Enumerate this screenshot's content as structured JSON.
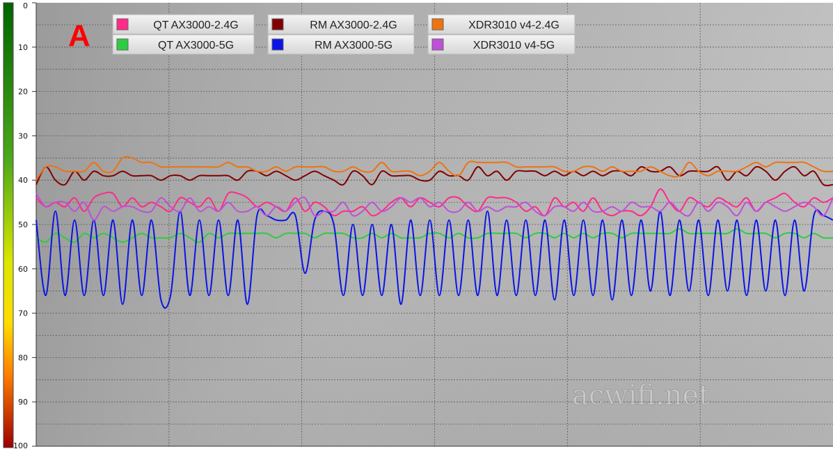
{
  "chart_data": {
    "type": "line",
    "title": "",
    "panel_label": "A",
    "watermark": "acwifi.net",
    "xlabel": "",
    "ylabel": "",
    "ylim": [
      0,
      100
    ],
    "y_inverted": true,
    "y_ticks": [
      0,
      10,
      20,
      30,
      40,
      50,
      60,
      70,
      80,
      90,
      100
    ],
    "grid": "on",
    "legend_placement": "top",
    "colors": {
      "qt24": "#ff2a8a",
      "qt5": "#2ecc40",
      "rm24": "#800000",
      "rm5": "#0a14e6",
      "xdr24": "#ee7311",
      "xdr5": "#c050d8",
      "scale_good": "#006400",
      "scale_bad": "#cc0000"
    },
    "series": [
      {
        "name": "QT AX3000-2.4G",
        "color_key": "qt24",
        "values": [
          44,
          46,
          45,
          46,
          44,
          47,
          44,
          43,
          43,
          46,
          44,
          46,
          45,
          46,
          47,
          44,
          45,
          46,
          44,
          47,
          43,
          43,
          44,
          46,
          45,
          46,
          47,
          44,
          47,
          45,
          46,
          48,
          47,
          47,
          46,
          48,
          47,
          45,
          44,
          46,
          44,
          45,
          46,
          44,
          44,
          46,
          47,
          44,
          44,
          44,
          45,
          47,
          46,
          48,
          44,
          46,
          45,
          47,
          44,
          47,
          48,
          47,
          47,
          48,
          46,
          42,
          45,
          47,
          44,
          45,
          46,
          44,
          45,
          46,
          44,
          47,
          45,
          44,
          43,
          45,
          46,
          44,
          45,
          44
        ]
      },
      {
        "name": "QT AX3000-5G",
        "color_key": "qt5",
        "values": [
          53,
          54,
          52,
          53,
          54,
          52,
          53,
          52,
          53,
          54,
          53,
          52,
          53,
          53,
          53,
          52,
          53,
          54,
          52,
          53,
          52,
          52,
          52,
          52,
          52,
          53,
          52,
          52,
          52,
          53,
          52,
          52,
          52,
          53,
          53,
          52,
          53,
          52,
          53,
          53,
          53,
          52,
          52,
          53,
          52,
          53,
          53,
          52,
          52,
          52,
          52,
          53,
          52,
          52,
          53,
          52,
          53,
          52,
          53,
          52,
          52,
          53,
          52,
          52,
          52,
          52,
          52,
          51,
          52,
          52,
          52,
          52,
          52,
          51,
          52,
          52,
          52,
          53,
          52,
          52,
          53,
          52,
          53,
          53
        ]
      },
      {
        "name": "RM AX3000-2.4G",
        "color_key": "rm24",
        "values": [
          41,
          37,
          40,
          41,
          38,
          40,
          38,
          39,
          39,
          38,
          39,
          39,
          39,
          40,
          39,
          39,
          40,
          39,
          39,
          39,
          39,
          40,
          38,
          38,
          39,
          38,
          39,
          40,
          39,
          38,
          39,
          40,
          41,
          38,
          39,
          41,
          38,
          39,
          39,
          39,
          40,
          40,
          38,
          39,
          39,
          40,
          37,
          39,
          38,
          40,
          38,
          38,
          38,
          39,
          38,
          39,
          38,
          39,
          38,
          39,
          38,
          38,
          39,
          37,
          38,
          38,
          37,
          39,
          38,
          38,
          38,
          37,
          40,
          38,
          39,
          37,
          38,
          40,
          38,
          37,
          39,
          38,
          41,
          41
        ]
      },
      {
        "name": "RM AX3000-5G",
        "color_key": "rm5",
        "values": [
          49,
          66,
          47,
          66,
          49,
          66,
          49,
          66,
          49,
          68,
          49,
          66,
          49,
          67,
          66,
          47,
          66,
          49,
          66,
          49,
          66,
          49,
          68,
          48,
          48,
          49,
          49,
          48,
          61,
          49,
          47,
          50,
          66,
          50,
          66,
          50,
          66,
          50,
          68,
          49,
          66,
          49,
          66,
          49,
          66,
          49,
          66,
          47,
          66,
          49,
          66,
          49,
          66,
          49,
          67,
          49,
          66,
          49,
          66,
          49,
          67,
          49,
          66,
          49,
          65,
          47,
          66,
          49,
          65,
          49,
          66,
          49,
          65,
          49,
          66,
          49,
          65,
          49,
          66,
          49,
          65,
          48,
          48,
          49
        ]
      },
      {
        "name": "XDR3010 v4-2.4G",
        "color_key": "xdr24",
        "values": [
          40,
          37,
          37,
          38,
          38,
          38,
          36,
          38,
          38,
          35,
          35,
          36,
          36,
          37,
          37,
          37,
          37,
          37,
          37,
          37,
          36,
          37,
          37,
          38,
          38,
          37,
          38,
          37,
          37,
          37,
          37,
          38,
          38,
          37,
          38,
          38,
          36,
          38,
          38,
          38,
          39,
          38,
          36,
          38,
          39,
          36,
          36,
          36,
          36,
          36,
          37,
          37,
          37,
          37,
          37,
          38,
          38,
          37,
          37,
          38,
          37,
          38,
          38,
          38,
          37,
          38,
          39,
          39,
          36,
          38,
          39,
          38,
          38,
          38,
          37,
          36,
          37,
          36,
          36,
          36,
          36,
          37,
          38,
          38
        ]
      },
      {
        "name": "XDR3010 v4-5G",
        "color_key": "xdr5",
        "values": [
          43,
          46,
          45,
          45,
          47,
          45,
          49,
          46,
          47,
          46,
          46,
          47,
          47,
          44,
          46,
          47,
          44,
          47,
          46,
          47,
          45,
          47,
          47,
          46,
          48,
          46,
          47,
          45,
          44,
          48,
          47,
          47,
          45,
          48,
          47,
          45,
          47,
          46,
          44,
          45,
          44,
          46,
          45,
          47,
          47,
          45,
          47,
          46,
          47,
          46,
          46,
          45,
          47,
          48,
          46,
          46,
          47,
          45,
          47,
          47,
          46,
          47,
          45,
          46,
          46,
          47,
          45,
          47,
          48,
          45,
          47,
          45,
          46,
          48,
          45,
          47,
          45,
          46,
          47,
          46,
          45,
          46,
          48,
          44
        ]
      }
    ]
  }
}
